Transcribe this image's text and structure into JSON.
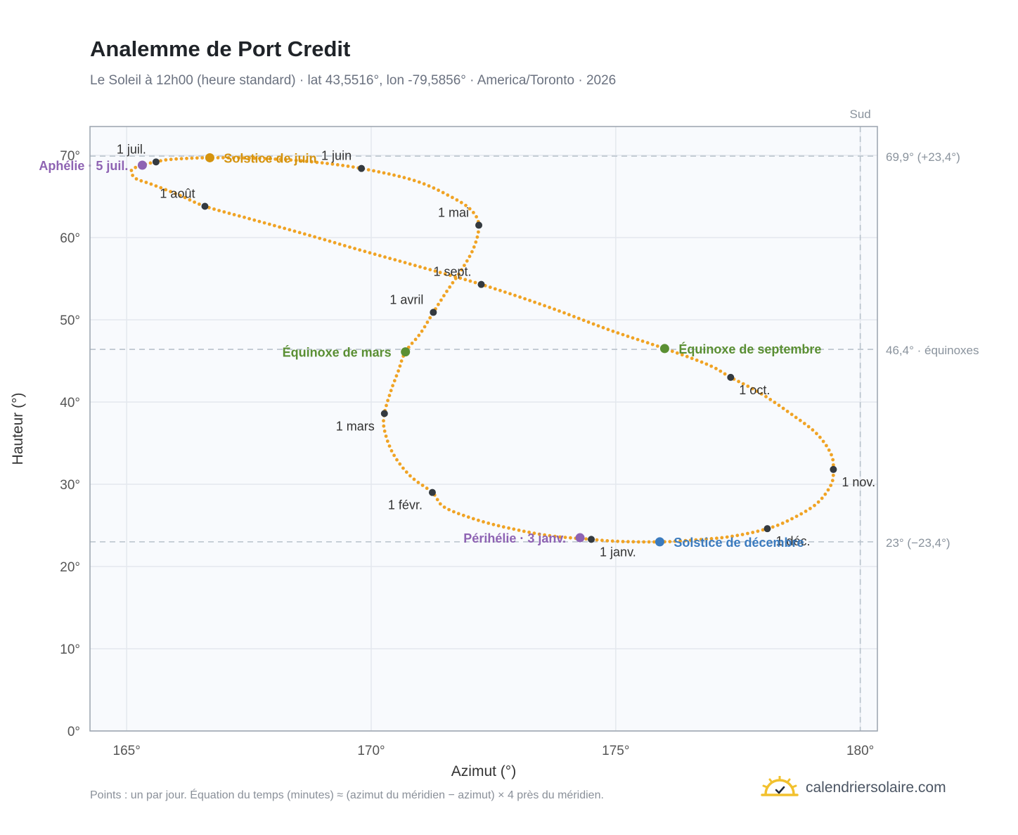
{
  "header": {
    "title": "Analemme de Port Credit",
    "subtitle": "Le Soleil à 12h00 (heure standard) · lat 43,5516°, lon -79,5856° · America/Toronto · 2026"
  },
  "footer": {
    "note": "Points : un par jour. Équation du temps (minutes) ≈ (azimut du méridien − azimut) × 4 près du méridien.",
    "brand": "calendriersolaire.com"
  },
  "colors": {
    "curve": "#f0a324",
    "month_point": "#343a40",
    "aphelion": "#8e63b3",
    "perihelion": "#8e63b3",
    "june_solstice": "#d4930f",
    "december_solstice": "#3b7bbf",
    "equinox": "#5a8f33",
    "reference_line": "#b8c2cc",
    "plot_bg": "#f8fafd",
    "grid": "#e4e8ee",
    "frame": "#9aa3ad"
  },
  "chart_data": {
    "type": "scatter",
    "xlabel": "Azimut (°)",
    "ylabel": "Hauteur (°)",
    "xlim": [
      164.25,
      180.35
    ],
    "ylim": [
      0,
      73.5
    ],
    "xticks": [
      165,
      170,
      175,
      180
    ],
    "xtick_labels": [
      "165°",
      "170°",
      "175°",
      "180°"
    ],
    "yticks": [
      0,
      10,
      20,
      30,
      40,
      50,
      60,
      70
    ],
    "ytick_labels": [
      "0°",
      "10°",
      "20°",
      "30°",
      "40°",
      "50°",
      "60°",
      "70°"
    ],
    "grid": true,
    "reference_lines": [
      {
        "axis": "y",
        "value": 69.9,
        "label": "69,9° (+23,4°)"
      },
      {
        "axis": "y",
        "value": 46.4,
        "label": "46,4° · équinoxes"
      },
      {
        "axis": "y",
        "value": 23.0,
        "label": "23° (−23,4°)"
      },
      {
        "axis": "x",
        "value": 180,
        "label": "Sud"
      }
    ],
    "curve_points": [
      [
        174.5,
        23.3
      ],
      [
        173.7,
        23.7
      ],
      [
        172.95,
        24.5
      ],
      [
        172.2,
        25.6
      ],
      [
        171.5,
        27.2
      ],
      [
        171.25,
        29.0
      ],
      [
        170.8,
        31.0
      ],
      [
        170.45,
        33.7
      ],
      [
        170.27,
        36.6
      ],
      [
        170.27,
        38.6
      ],
      [
        170.4,
        41.3
      ],
      [
        170.55,
        43.7
      ],
      [
        170.7,
        46.1
      ],
      [
        171.0,
        48.3
      ],
      [
        171.27,
        50.9
      ],
      [
        171.55,
        53.5
      ],
      [
        171.85,
        56.1
      ],
      [
        172.1,
        58.8
      ],
      [
        172.2,
        61.5
      ],
      [
        172.05,
        63.3
      ],
      [
        171.65,
        64.9
      ],
      [
        170.9,
        66.9
      ],
      [
        169.8,
        68.4
      ],
      [
        168.8,
        69.2
      ],
      [
        167.8,
        69.6
      ],
      [
        166.7,
        69.7
      ],
      [
        165.9,
        69.5
      ],
      [
        165.6,
        69.2
      ],
      [
        165.32,
        68.8
      ],
      [
        165.1,
        68.2
      ],
      [
        165.18,
        67.2
      ],
      [
        165.5,
        66.5
      ],
      [
        166.1,
        65.1
      ],
      [
        166.6,
        63.8
      ],
      [
        167.5,
        62.3
      ],
      [
        168.6,
        60.5
      ],
      [
        169.7,
        58.6
      ],
      [
        170.9,
        56.6
      ],
      [
        172.25,
        54.3
      ],
      [
        173.6,
        51.6
      ],
      [
        174.9,
        48.7
      ],
      [
        176.0,
        46.5
      ],
      [
        176.9,
        44.5
      ],
      [
        177.35,
        43.0
      ],
      [
        177.95,
        41.1
      ],
      [
        178.55,
        38.7
      ],
      [
        179.1,
        36.2
      ],
      [
        179.4,
        33.7
      ],
      [
        179.45,
        31.8
      ],
      [
        179.4,
        29.9
      ],
      [
        179.1,
        27.6
      ],
      [
        178.6,
        25.8
      ],
      [
        178.1,
        24.6
      ],
      [
        177.3,
        23.6
      ],
      [
        176.3,
        23.1
      ],
      [
        175.9,
        23.0
      ],
      [
        175.4,
        23.0
      ],
      [
        174.9,
        23.1
      ],
      [
        174.5,
        23.3
      ]
    ],
    "month_markers": [
      {
        "label": "1 janv.",
        "x": 174.5,
        "y": 23.3,
        "pos": "below-right"
      },
      {
        "label": "1 févr.",
        "x": 171.25,
        "y": 29.0,
        "pos": "below-left"
      },
      {
        "label": "1 mars",
        "x": 170.27,
        "y": 38.6,
        "pos": "below-left"
      },
      {
        "label": "1 avril",
        "x": 171.27,
        "y": 50.9,
        "pos": "above-left"
      },
      {
        "label": "1 mai",
        "x": 172.2,
        "y": 61.5,
        "pos": "above-left"
      },
      {
        "label": "1 juin",
        "x": 169.8,
        "y": 68.4,
        "pos": "above-left"
      },
      {
        "label": "1 juil.",
        "x": 165.6,
        "y": 69.2,
        "pos": "above-left"
      },
      {
        "label": "1 août",
        "x": 166.6,
        "y": 63.8,
        "pos": "above-left"
      },
      {
        "label": "1 sept.",
        "x": 172.25,
        "y": 54.3,
        "pos": "above-left"
      },
      {
        "label": "1 oct.",
        "x": 177.35,
        "y": 43.0,
        "pos": "below-right"
      },
      {
        "label": "1 nov.",
        "x": 179.45,
        "y": 31.8,
        "pos": "below-right"
      },
      {
        "label": "1 déc.",
        "x": 178.1,
        "y": 24.6,
        "pos": "below-right"
      }
    ],
    "events": [
      {
        "label": "Aphélie · 5 juil.",
        "x": 165.32,
        "y": 68.8,
        "color": "#8e63b3",
        "side": "left"
      },
      {
        "label": "Solstice de juin",
        "x": 166.7,
        "y": 69.7,
        "color": "#d4930f",
        "side": "right"
      },
      {
        "label": "Équinoxe de mars",
        "x": 170.7,
        "y": 46.1,
        "color": "#5a8f33",
        "side": "left"
      },
      {
        "label": "Équinoxe de septembre",
        "x": 176.0,
        "y": 46.5,
        "color": "#5a8f33",
        "side": "right"
      },
      {
        "label": "Périhélie · 3 janv.",
        "x": 174.27,
        "y": 23.5,
        "color": "#8e63b3",
        "side": "left"
      },
      {
        "label": "Solstice de décembre",
        "x": 175.9,
        "y": 23.0,
        "color": "#3b7bbf",
        "side": "right"
      }
    ]
  }
}
